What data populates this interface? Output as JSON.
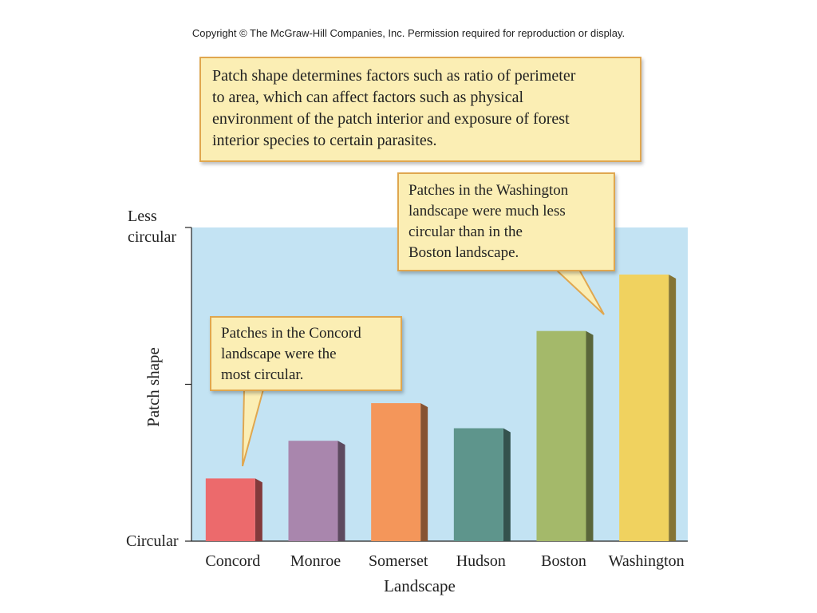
{
  "copyright": "Copyright © The McGraw-Hill Companies, Inc. Permission required for reproduction or display.",
  "callouts": {
    "main": [
      "Patch shape determines factors such as ratio of perimeter",
      "to area, which can affect factors such as physical",
      "environment of the patch interior and exposure of forest",
      "interior species to certain parasites."
    ],
    "washington": [
      "Patches in the Washington",
      "landscape were much less",
      "circular than in the",
      "Boston landscape."
    ],
    "concord": [
      "Patches in the Concord",
      "landscape were the",
      "most circular."
    ]
  },
  "chart_data": {
    "type": "bar",
    "categories": [
      "Concord",
      "Monroe",
      "Somerset",
      "Hudson",
      "Boston",
      "Washington"
    ],
    "values": [
      0.2,
      0.32,
      0.44,
      0.36,
      0.67,
      0.85
    ],
    "colors": [
      "#ec6a6c",
      "#a986ad",
      "#f4965a",
      "#5e958c",
      "#a4b96a",
      "#f0d25f"
    ],
    "xlabel": "Landscape",
    "ylabel": "Patch shape",
    "ytick_top": [
      "Less",
      "circular"
    ],
    "ytick_bottom": "Circular",
    "ylim": [
      0,
      1
    ],
    "background": "#c3e3f3"
  }
}
